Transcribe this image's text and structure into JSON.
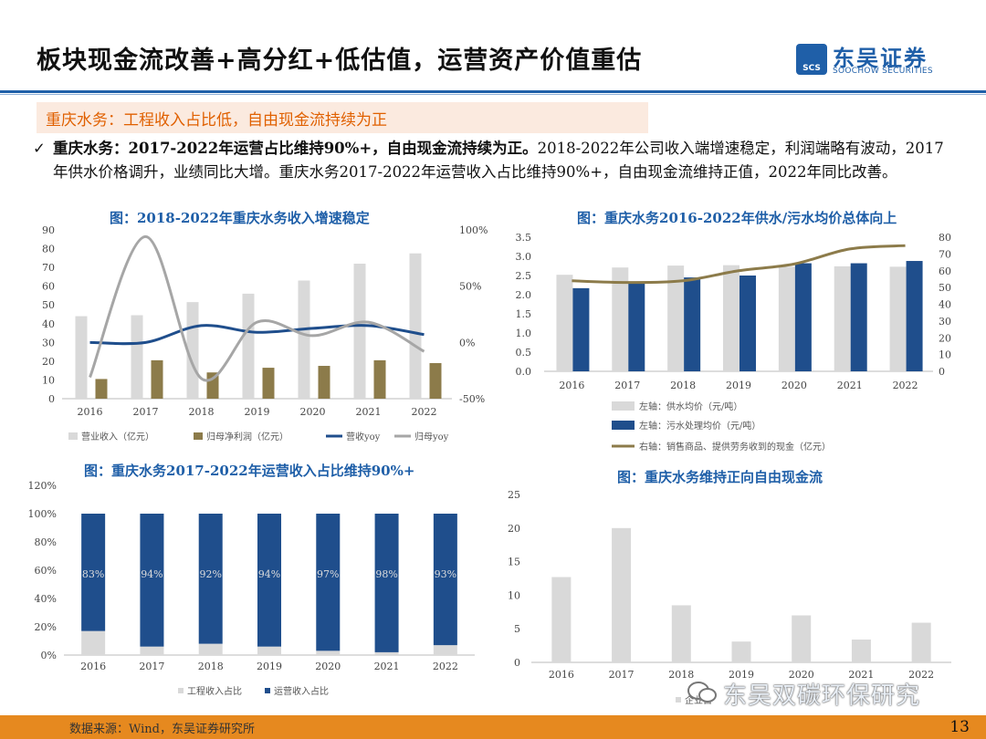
{
  "header": {
    "title": "板块现金流改善+高分红+低估值，运营资产价值重估",
    "logo_cn": "东吴证券",
    "logo_en": "SOOCHOW SECURITIES",
    "logo_mark": "SCS"
  },
  "subtitle": "重庆水务：工程收入占比低，自由现金流持续为正",
  "bullet": {
    "check": "✓",
    "bold": "重庆水务：2017-2022年运营占比维持90%+，自由现金流持续为正。",
    "text": "2018-2022年公司收入端增速稳定，利润端略有波动，2017年供水价格调升，业绩同比大增。重庆水务2017-2022年运营收入占比维持90%+，自由现金流维持正值，2022年同比改善。"
  },
  "footer": {
    "source": "数据来源：Wind，东吴证券研究所",
    "page": "13"
  },
  "watermark": "东吴双碳环保研究",
  "chart_data": [
    {
      "type": "bar",
      "title": "图：2018-2022年重庆水务收入增速稳定",
      "categories": [
        "2016",
        "2017",
        "2018",
        "2019",
        "2020",
        "2021",
        "2022"
      ],
      "series": [
        {
          "name": "营业收入（亿元）",
          "kind": "bar",
          "axis": "left",
          "color": "#d9d9d9",
          "values": [
            44,
            44.5,
            51.5,
            56,
            63,
            72,
            77.5
          ]
        },
        {
          "name": "归母净利润（亿元）",
          "kind": "bar",
          "axis": "left",
          "color": "#8c7b4a",
          "values": [
            10.5,
            20.5,
            14,
            16.5,
            17.5,
            20.5,
            19
          ]
        },
        {
          "name": "营收yoy",
          "kind": "line",
          "axis": "right",
          "color": "#1f4e8c",
          "values": [
            0,
            0,
            15,
            9,
            12.5,
            15,
            7
          ]
        },
        {
          "name": "归母yoy",
          "kind": "line",
          "axis": "right",
          "color": "#a6a6a6",
          "values": [
            -31,
            94,
            -32,
            18,
            6,
            18,
            -8
          ]
        }
      ],
      "yleft": {
        "min": 0,
        "max": 90,
        "ticks": [
          "0",
          "10",
          "20",
          "30",
          "40",
          "50",
          "60",
          "70",
          "80",
          "90"
        ]
      },
      "yright": {
        "min": -50,
        "max": 100,
        "ticks": [
          "-50%",
          "0%",
          "50%",
          "100%"
        ]
      }
    },
    {
      "type": "bar",
      "title": "图：重庆水务2016-2022年供水/污水均价总体向上",
      "categories": [
        "2016",
        "2017",
        "2018",
        "2019",
        "2020",
        "2021",
        "2022"
      ],
      "series": [
        {
          "name": "左轴：供水均价（元/吨）",
          "kind": "bar",
          "axis": "left",
          "color": "#d9d9d9",
          "values": [
            2.52,
            2.71,
            2.76,
            2.77,
            2.73,
            2.74,
            2.73
          ]
        },
        {
          "name": "左轴：污水处理均价（元/吨）",
          "kind": "bar",
          "axis": "left",
          "color": "#1f4e8c",
          "values": [
            2.17,
            2.33,
            2.45,
            2.5,
            2.82,
            2.82,
            2.88
          ]
        },
        {
          "name": "右轴：销售商品、提供劳务收到的现金（亿元）",
          "kind": "line",
          "axis": "right",
          "color": "#8c7b4a",
          "values": [
            54,
            53,
            54,
            60,
            64,
            73,
            75
          ]
        }
      ],
      "yleft": {
        "min": 0,
        "max": 3.5,
        "ticks": [
          "0.0",
          "0.5",
          "1.0",
          "1.5",
          "2.0",
          "2.5",
          "3.0",
          "3.5"
        ]
      },
      "yright": {
        "min": 0,
        "max": 80,
        "ticks": [
          "0",
          "10",
          "20",
          "30",
          "40",
          "50",
          "60",
          "70",
          "80"
        ]
      }
    },
    {
      "type": "bar",
      "stacked": true,
      "title": "图：重庆水务2017-2022年运营收入占比维持90%+",
      "categories": [
        "2016",
        "2017",
        "2018",
        "2019",
        "2020",
        "2021",
        "2022"
      ],
      "series": [
        {
          "name": "工程收入占比",
          "color": "#d9d9d9",
          "values": [
            17,
            6,
            8,
            6,
            3,
            2,
            7
          ]
        },
        {
          "name": "运营收入占比",
          "color": "#1f4e8c",
          "values": [
            83,
            94,
            92,
            94,
            97,
            98,
            93
          ]
        }
      ],
      "labels": [
        "83%",
        "94%",
        "92%",
        "94%",
        "97%",
        "98%",
        "93%"
      ],
      "yleft": {
        "min": 0,
        "max": 120,
        "ticks": [
          "0%",
          "20%",
          "40%",
          "60%",
          "80%",
          "100%",
          "120%"
        ]
      }
    },
    {
      "type": "bar",
      "title": "图：重庆水务维持正向自由现金流",
      "categories": [
        "2016",
        "2017",
        "2018",
        "2019",
        "2020",
        "2021",
        "2022"
      ],
      "series": [
        {
          "name": "企业自由现金流",
          "color": "#d9d9d9",
          "values": [
            12.7,
            20,
            8.5,
            3.1,
            7,
            3.4,
            5.9
          ]
        }
      ],
      "legend_visible": "企业自",
      "yleft": {
        "min": 0,
        "max": 25,
        "ticks": [
          "0",
          "5",
          "10",
          "15",
          "20",
          "25"
        ]
      }
    }
  ]
}
